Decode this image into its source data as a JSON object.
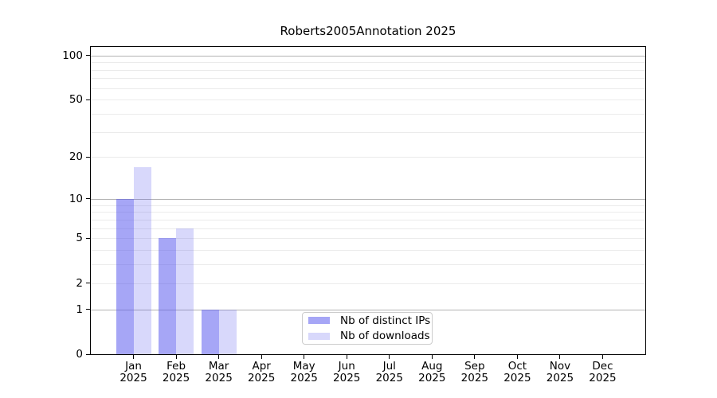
{
  "figure": {
    "title": "Roberts2005Annotation 2025"
  },
  "colors": {
    "bar_base": "#5555ee",
    "bar_distinct_ips": "rgba(85,85,238,0.52)",
    "bar_downloads": "rgba(85,85,238,0.23)",
    "grid_major": "#b3b3b3",
    "grid_minor": "#ebebeb",
    "spine": "#000000",
    "text": "#000000",
    "legend_border": "#cccccc"
  },
  "chart_data": {
    "type": "bar",
    "title": "Roberts2005Annotation 2025",
    "x_categories": [
      "Jan",
      "Feb",
      "Mar",
      "Apr",
      "May",
      "Jun",
      "Jul",
      "Aug",
      "Sep",
      "Oct",
      "Nov",
      "Dec"
    ],
    "x_year": "2025",
    "series": [
      {
        "name": "Nb of distinct IPs",
        "color": "rgba(85,85,238,0.52)",
        "values": [
          10,
          5,
          1,
          0,
          0,
          0,
          0,
          0,
          0,
          0,
          0,
          0
        ]
      },
      {
        "name": "Nb of downloads",
        "color": "rgba(85,85,238,0.23)",
        "values": [
          17,
          6,
          1,
          0,
          0,
          0,
          0,
          0,
          0,
          0,
          0,
          0
        ]
      }
    ],
    "yscale": "log1p",
    "ylim": [
      0,
      114
    ],
    "y_tick_values": [
      0,
      1,
      2,
      5,
      10,
      20,
      50,
      100
    ],
    "y_tick_labels": [
      "0",
      "1",
      "2",
      "5",
      "10",
      "20",
      "50",
      "100"
    ],
    "grid": {
      "orientation": "horizontal",
      "major_at": [
        1,
        10,
        100
      ],
      "minor_at": [
        2,
        3,
        4,
        5,
        6,
        7,
        8,
        9,
        20,
        30,
        40,
        50,
        60,
        70,
        80,
        90
      ]
    },
    "legend_entries": [
      "Nb of distinct IPs",
      "Nb of downloads"
    ],
    "legend_position": "lower center",
    "xlabel": "",
    "ylabel": ""
  }
}
